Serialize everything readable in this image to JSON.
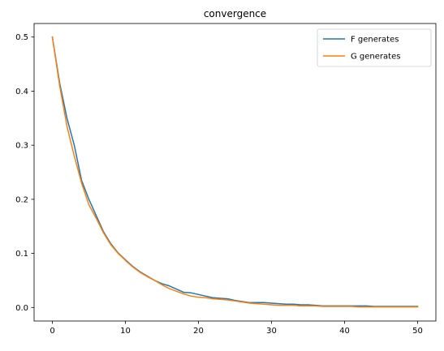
{
  "chart_data": {
    "type": "line",
    "title": "convergence",
    "xlabel": "",
    "ylabel": "",
    "xlim": [
      -2.5,
      52.5
    ],
    "ylim": [
      -0.025,
      0.525
    ],
    "xticks": [
      0,
      10,
      20,
      30,
      40,
      50
    ],
    "xtick_labels": [
      "0",
      "10",
      "20",
      "30",
      "40",
      "50"
    ],
    "yticks": [
      0.0,
      0.1,
      0.2,
      0.3,
      0.4,
      0.5
    ],
    "ytick_labels": [
      "0.0",
      "0.1",
      "0.2",
      "0.3",
      "0.4",
      "0.5"
    ],
    "grid": false,
    "legend_position": "top-right",
    "x": [
      0,
      1,
      2,
      3,
      4,
      5,
      6,
      7,
      8,
      9,
      10,
      11,
      12,
      13,
      14,
      15,
      16,
      17,
      18,
      19,
      20,
      21,
      22,
      23,
      24,
      25,
      26,
      27,
      28,
      29,
      30,
      31,
      32,
      33,
      34,
      35,
      36,
      37,
      38,
      39,
      40,
      41,
      42,
      43,
      44,
      45,
      46,
      47,
      48,
      49,
      50
    ],
    "series": [
      {
        "name": "F generates",
        "color": "#1f77b4",
        "values": [
          0.5,
          0.415,
          0.35,
          0.3,
          0.235,
          0.2,
          0.17,
          0.14,
          0.118,
          0.101,
          0.088,
          0.076,
          0.066,
          0.058,
          0.05,
          0.044,
          0.04,
          0.034,
          0.028,
          0.027,
          0.024,
          0.021,
          0.018,
          0.017,
          0.016,
          0.013,
          0.011,
          0.009,
          0.009,
          0.009,
          0.008,
          0.007,
          0.006,
          0.006,
          0.005,
          0.005,
          0.004,
          0.003,
          0.003,
          0.003,
          0.003,
          0.003,
          0.003,
          0.003,
          0.002,
          0.002,
          0.002,
          0.002,
          0.002,
          0.002,
          0.002
        ]
      },
      {
        "name": "G generates",
        "color": "#ff7f0e",
        "values": [
          0.5,
          0.41,
          0.335,
          0.28,
          0.23,
          0.19,
          0.165,
          0.138,
          0.116,
          0.1,
          0.087,
          0.075,
          0.065,
          0.057,
          0.05,
          0.042,
          0.035,
          0.03,
          0.025,
          0.021,
          0.019,
          0.018,
          0.016,
          0.015,
          0.014,
          0.012,
          0.01,
          0.008,
          0.007,
          0.006,
          0.005,
          0.004,
          0.004,
          0.004,
          0.003,
          0.003,
          0.003,
          0.002,
          0.002,
          0.002,
          0.002,
          0.002,
          0.001,
          0.001,
          0.001,
          0.001,
          0.001,
          0.001,
          0.001,
          0.001,
          0.001
        ]
      }
    ]
  }
}
